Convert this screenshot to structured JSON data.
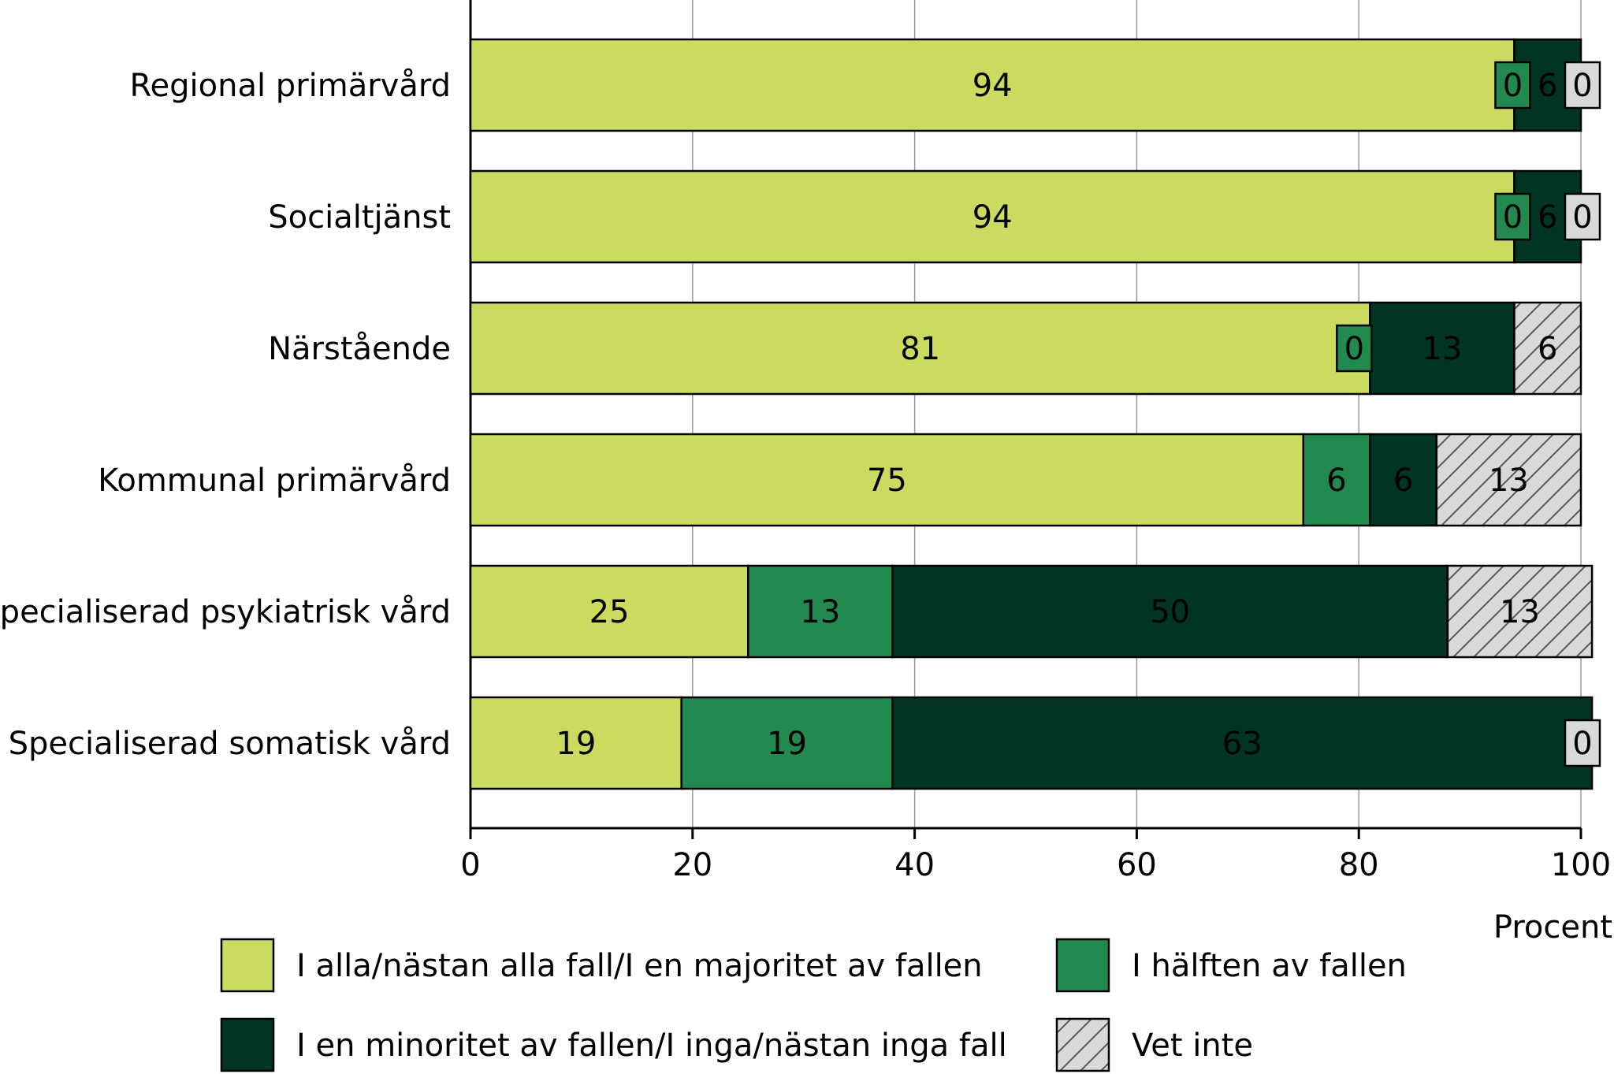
{
  "chart_data": {
    "type": "bar",
    "orientation": "horizontal",
    "stacked": true,
    "categories": [
      "Regional primärvård",
      "Socialtjänst",
      "Närstående",
      "Kommunal primärvård",
      "Specialiserad psykiatrisk vård",
      "Specialiserad somatisk vård"
    ],
    "series": [
      {
        "name": "I alla/nästan alla fall/I en majoritet av fallen",
        "values": [
          94,
          94,
          81,
          75,
          25,
          19
        ],
        "color": "#cbdb5f",
        "pattern": "solid"
      },
      {
        "name": "I hälften av fallen",
        "values": [
          0,
          0,
          0,
          6,
          13,
          19
        ],
        "color": "#238a4f",
        "pattern": "solid"
      },
      {
        "name": "I en minoritet av fallen/I inga/nästan inga fall",
        "values": [
          6,
          6,
          13,
          6,
          50,
          63
        ],
        "color": "#003524",
        "pattern": "solid"
      },
      {
        "name": "Vet inte",
        "values": [
          0,
          0,
          6,
          13,
          13,
          0
        ],
        "color": "#d9d9d9",
        "pattern": "hatched"
      }
    ],
    "xlabel": "Procent",
    "xlim": [
      0,
      100
    ],
    "xticks": [
      0,
      20,
      40,
      60,
      80,
      100
    ],
    "grid": true,
    "legend_placement": "bottom",
    "data_labels": true
  }
}
